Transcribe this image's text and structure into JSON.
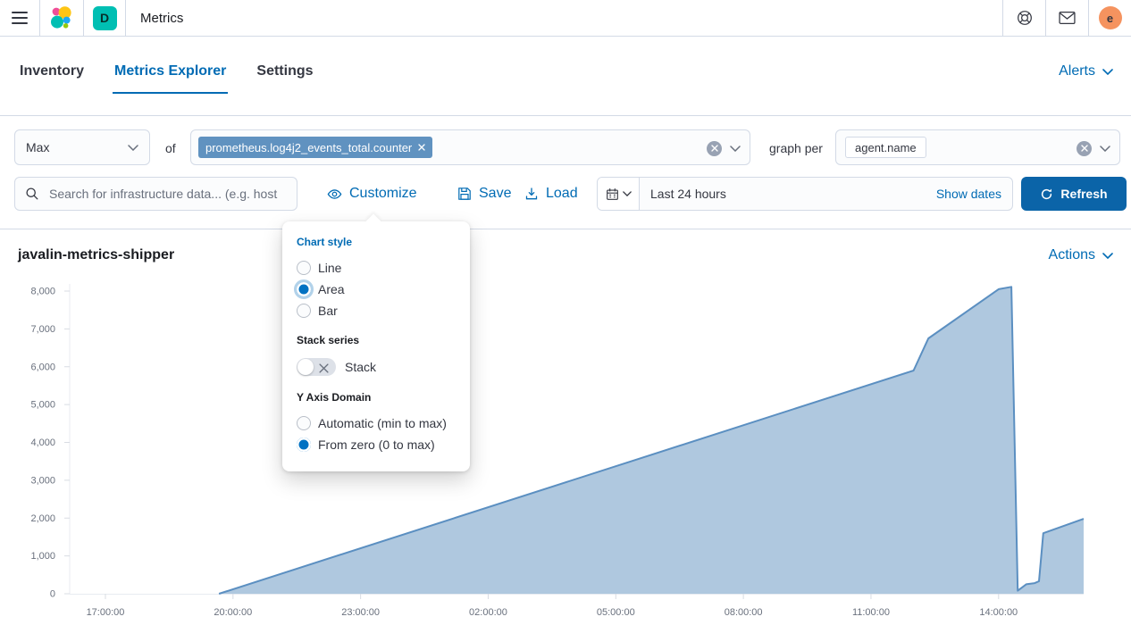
{
  "topbar": {
    "title": "Metrics",
    "space_initial": "D",
    "avatar_initial": "e"
  },
  "nav": {
    "tabs": [
      {
        "label": "Inventory",
        "active": false
      },
      {
        "label": "Metrics Explorer",
        "active": true
      },
      {
        "label": "Settings",
        "active": false
      }
    ],
    "alerts_label": "Alerts"
  },
  "controls": {
    "aggregation_value": "Max",
    "of_label": "of",
    "metric_tag": "prometheus.log4j2_events_total.counter",
    "graph_per_label": "graph per",
    "group_by_tag": "agent.name",
    "search_placeholder": "Search for infrastructure data... (e.g. host",
    "customize_label": "Customize",
    "save_label": "Save",
    "load_label": "Load",
    "time_range": "Last 24 hours",
    "show_dates_label": "Show dates",
    "refresh_label": "Refresh"
  },
  "popover": {
    "chart_style": {
      "heading": "Chart style",
      "options": [
        {
          "label": "Line",
          "selected": false
        },
        {
          "label": "Area",
          "selected": true
        },
        {
          "label": "Bar",
          "selected": false
        }
      ]
    },
    "stack": {
      "heading": "Stack series",
      "toggle_label": "Stack",
      "enabled": false
    },
    "y_domain": {
      "heading": "Y Axis Domain",
      "options": [
        {
          "label": "Automatic (min to max)",
          "selected": false
        },
        {
          "label": "From zero (0 to max)",
          "selected": true
        }
      ]
    }
  },
  "chart": {
    "title": "javalin-metrics-shipper",
    "actions_label": "Actions"
  },
  "chart_data": {
    "type": "area",
    "title": "javalin-metrics-shipper",
    "legend": "none",
    "grid": "off",
    "y_ticks": [
      0,
      1000,
      2000,
      3000,
      4000,
      5000,
      6000,
      7000,
      8000
    ],
    "ylim": [
      0,
      8000
    ],
    "x_unit": "hours offset from first tick (17:00:00)",
    "xlim_hours": [
      -0.84,
      23.0
    ],
    "x_ticks": [
      {
        "h": 0,
        "label": "17:00:00"
      },
      {
        "h": 3,
        "label": "20:00:00"
      },
      {
        "h": 6,
        "label": "23:00:00"
      },
      {
        "h": 9,
        "label": "02:00:00"
      },
      {
        "h": 12,
        "label": "05:00:00"
      },
      {
        "h": 15,
        "label": "08:00:00"
      },
      {
        "h": 18,
        "label": "11:00:00"
      },
      {
        "h": 21,
        "label": "14:00:00"
      }
    ],
    "series": [
      {
        "name": "javalin-metrics-shipper",
        "points": [
          [
            2.67,
            0
          ],
          [
            19.0,
            5900
          ],
          [
            19.35,
            6750
          ],
          [
            21.0,
            8050
          ],
          [
            21.3,
            8110
          ],
          [
            21.45,
            80
          ],
          [
            21.65,
            250
          ],
          [
            21.85,
            280
          ],
          [
            21.95,
            330
          ],
          [
            22.05,
            1600
          ],
          [
            23.0,
            1980
          ]
        ]
      }
    ],
    "line_color": "#5b8fc1",
    "area_fill": "rgba(96,146,192,0.5)"
  },
  "colors": {
    "accent": "#006BB4",
    "refresh_button": "#0b64a8",
    "metric_tag_bg": "#6092C0",
    "space_badge": "#00bfb3",
    "avatar_bg": "#f5935f",
    "border": "#d3dae6",
    "text": "#343741",
    "subdued": "#69707d"
  },
  "icons": {
    "menu": "hamburger",
    "logo": "elastic-cluster",
    "help": "life-ring",
    "mail": "envelope",
    "search": "magnifier",
    "customize": "eye",
    "save": "floppy-disk",
    "load": "download-tray",
    "calendar": "calendar",
    "refresh": "circular-arrow",
    "chevron": "chevron-down",
    "clear": "circle-x",
    "tag_close": "x",
    "toggle_off": "x"
  }
}
